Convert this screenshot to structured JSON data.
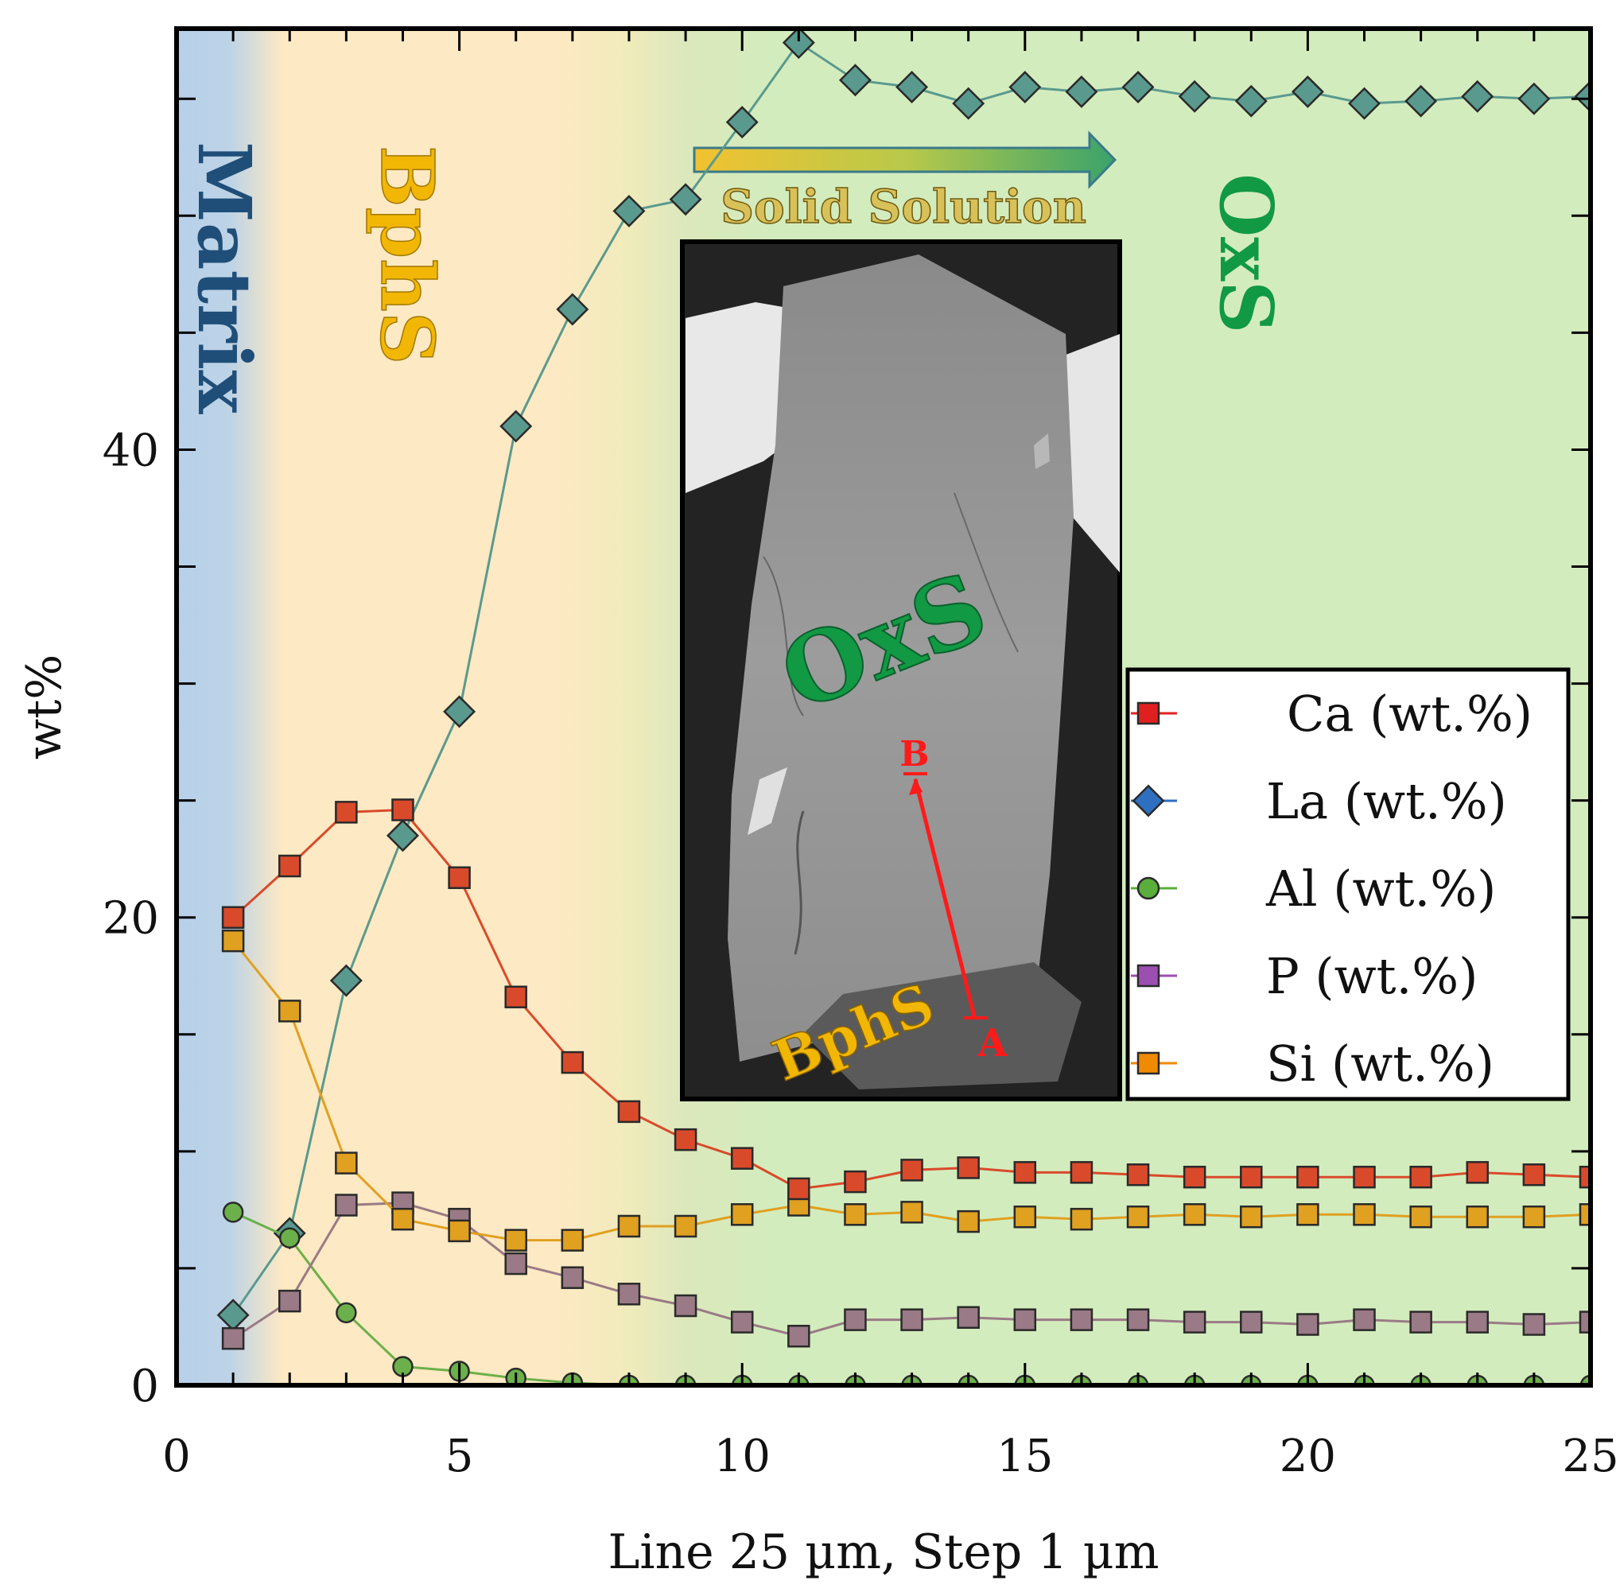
{
  "chart_data": {
    "type": "line",
    "title": "",
    "xlabel": "Line 25 µm, Step 1 µm",
    "ylabel": "wt%",
    "xlim": [
      0,
      25
    ],
    "ylim": [
      0,
      58
    ],
    "xticks": [
      0,
      5,
      10,
      15,
      20,
      25
    ],
    "yticks": [
      0,
      20,
      40
    ],
    "x": [
      1,
      2,
      3,
      4,
      5,
      6,
      7,
      8,
      9,
      10,
      11,
      12,
      13,
      14,
      15,
      16,
      17,
      18,
      19,
      20,
      21,
      22,
      23,
      24,
      25
    ],
    "series": [
      {
        "name": "Ca  (wt.%)",
        "marker": "square",
        "color": "#d94a2b",
        "values": [
          20.0,
          22.2,
          24.5,
          24.6,
          21.7,
          16.6,
          13.8,
          11.7,
          10.5,
          9.7,
          8.4,
          8.7,
          9.2,
          9.3,
          9.1,
          9.1,
          9.0,
          8.9,
          8.9,
          8.9,
          8.9,
          8.9,
          9.1,
          9.0,
          8.9
        ]
      },
      {
        "name": "La (wt.%)",
        "marker": "diamond",
        "color": "#5a9a8e",
        "values": [
          3.0,
          6.5,
          17.3,
          23.5,
          28.8,
          41.0,
          46.0,
          50.2,
          50.7,
          54.0,
          57.4,
          55.8,
          55.5,
          54.8,
          55.5,
          55.3,
          55.5,
          55.1,
          54.9,
          55.3,
          54.8,
          54.9,
          55.1,
          55.0,
          55.1
        ]
      },
      {
        "name": "Al (wt.%)",
        "marker": "circle",
        "color": "#6bb04a",
        "values": [
          7.4,
          6.3,
          3.1,
          0.8,
          0.6,
          0.3,
          0.1,
          0.0,
          0.0,
          0.0,
          0.0,
          0.0,
          0.0,
          0.0,
          0.0,
          0.0,
          0.0,
          0.0,
          0.0,
          0.0,
          0.0,
          0.0,
          0.0,
          0.0,
          0.0
        ]
      },
      {
        "name": "P  (wt.%)",
        "marker": "square",
        "color": "#9a7a86",
        "values": [
          2.0,
          3.6,
          7.7,
          7.8,
          7.1,
          5.2,
          4.6,
          3.9,
          3.4,
          2.7,
          2.1,
          2.8,
          2.8,
          2.9,
          2.8,
          2.8,
          2.8,
          2.7,
          2.7,
          2.6,
          2.8,
          2.7,
          2.7,
          2.6,
          2.7
        ]
      },
      {
        "name": "Si (wt.%)",
        "marker": "square",
        "color": "#e0a020",
        "values": [
          19.0,
          16.0,
          9.5,
          7.1,
          6.6,
          6.2,
          6.2,
          6.8,
          6.8,
          7.3,
          7.7,
          7.3,
          7.4,
          7.0,
          7.2,
          7.1,
          7.2,
          7.3,
          7.2,
          7.3,
          7.3,
          7.2,
          7.2,
          7.2,
          7.3
        ]
      }
    ],
    "regions": [
      {
        "label": "Matrix",
        "color": "#1f4e79"
      },
      {
        "label": "BphS",
        "color": "#f2b705"
      },
      {
        "label": "OxS",
        "color": "#119944"
      }
    ],
    "arrow_label": "Solid Solution",
    "inset": {
      "labels": {
        "oxs": "OxS",
        "bphs": "BphS",
        "point_a": "A",
        "point_b": "B"
      }
    },
    "legend_position": "right"
  }
}
